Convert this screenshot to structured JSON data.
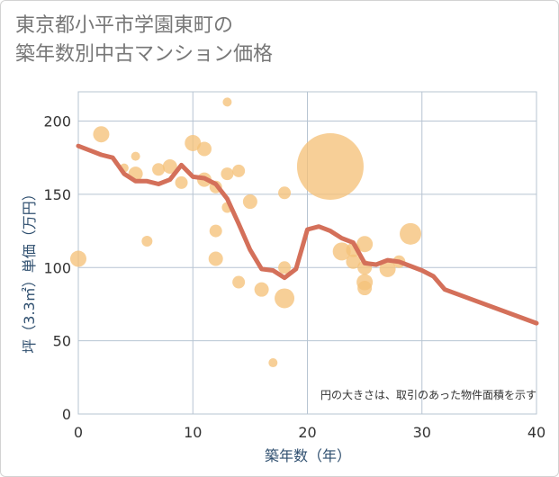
{
  "title": "東京都小平市学園東町の\n築年数別中古マンション価格",
  "note": "円の大きさは、取引のあった物件面積を示す",
  "colors": {
    "line": "#d4705a",
    "bubble": "#f5c27a",
    "grid": "#b7c4d2",
    "axis_text": "#2f4f6f"
  },
  "chart_data": {
    "type": "scatter",
    "xlabel": "築年数（年）",
    "ylabel": "坪（3.3㎡）単価（万円）",
    "xlim": [
      0,
      40
    ],
    "ylim": [
      0,
      220
    ],
    "xticks": [
      0,
      10,
      20,
      30,
      40
    ],
    "yticks": [
      0,
      50,
      100,
      150,
      200
    ],
    "grid": true,
    "scatter": [
      {
        "x": 0,
        "y": 106,
        "size": 9
      },
      {
        "x": 2,
        "y": 191,
        "size": 9
      },
      {
        "x": 4,
        "y": 168,
        "size": 5
      },
      {
        "x": 5,
        "y": 176,
        "size": 5
      },
      {
        "x": 5,
        "y": 164,
        "size": 8
      },
      {
        "x": 6,
        "y": 118,
        "size": 6
      },
      {
        "x": 7,
        "y": 167,
        "size": 7
      },
      {
        "x": 8,
        "y": 169,
        "size": 8
      },
      {
        "x": 9,
        "y": 158,
        "size": 7
      },
      {
        "x": 10,
        "y": 185,
        "size": 9
      },
      {
        "x": 11,
        "y": 181,
        "size": 8
      },
      {
        "x": 11,
        "y": 160,
        "size": 8
      },
      {
        "x": 12,
        "y": 155,
        "size": 7
      },
      {
        "x": 12,
        "y": 125,
        "size": 7
      },
      {
        "x": 12,
        "y": 106,
        "size": 8
      },
      {
        "x": 13,
        "y": 213,
        "size": 5
      },
      {
        "x": 13,
        "y": 164,
        "size": 7
      },
      {
        "x": 13,
        "y": 141,
        "size": 6
      },
      {
        "x": 14,
        "y": 166,
        "size": 7
      },
      {
        "x": 14,
        "y": 90,
        "size": 7
      },
      {
        "x": 15,
        "y": 145,
        "size": 8
      },
      {
        "x": 16,
        "y": 85,
        "size": 8
      },
      {
        "x": 17,
        "y": 35,
        "size": 5
      },
      {
        "x": 18,
        "y": 151,
        "size": 7
      },
      {
        "x": 18,
        "y": 100,
        "size": 7
      },
      {
        "x": 18,
        "y": 79,
        "size": 11
      },
      {
        "x": 22,
        "y": 169,
        "size": 37
      },
      {
        "x": 23,
        "y": 111,
        "size": 10
      },
      {
        "x": 24,
        "y": 112,
        "size": 8
      },
      {
        "x": 24,
        "y": 104,
        "size": 8
      },
      {
        "x": 25,
        "y": 116,
        "size": 9
      },
      {
        "x": 25,
        "y": 100,
        "size": 8
      },
      {
        "x": 25,
        "y": 90,
        "size": 9
      },
      {
        "x": 25,
        "y": 86,
        "size": 8
      },
      {
        "x": 27,
        "y": 99,
        "size": 9
      },
      {
        "x": 28,
        "y": 104,
        "size": 7
      },
      {
        "x": 29,
        "y": 123,
        "size": 12
      }
    ],
    "line": [
      {
        "x": 0,
        "y": 183
      },
      {
        "x": 1,
        "y": 180
      },
      {
        "x": 2,
        "y": 177
      },
      {
        "x": 3,
        "y": 175
      },
      {
        "x": 4,
        "y": 164
      },
      {
        "x": 5,
        "y": 159
      },
      {
        "x": 6,
        "y": 159
      },
      {
        "x": 7,
        "y": 157
      },
      {
        "x": 8,
        "y": 160
      },
      {
        "x": 9,
        "y": 170
      },
      {
        "x": 10,
        "y": 162
      },
      {
        "x": 11,
        "y": 161
      },
      {
        "x": 12,
        "y": 157
      },
      {
        "x": 13,
        "y": 147
      },
      {
        "x": 14,
        "y": 130
      },
      {
        "x": 15,
        "y": 112
      },
      {
        "x": 16,
        "y": 99
      },
      {
        "x": 17,
        "y": 98
      },
      {
        "x": 18,
        "y": 93
      },
      {
        "x": 19,
        "y": 99
      },
      {
        "x": 20,
        "y": 126
      },
      {
        "x": 21,
        "y": 128
      },
      {
        "x": 22,
        "y": 125
      },
      {
        "x": 23,
        "y": 120
      },
      {
        "x": 24,
        "y": 117
      },
      {
        "x": 25,
        "y": 103
      },
      {
        "x": 26,
        "y": 102
      },
      {
        "x": 27,
        "y": 105
      },
      {
        "x": 28,
        "y": 104
      },
      {
        "x": 29,
        "y": 101
      },
      {
        "x": 30,
        "y": 98
      },
      {
        "x": 31,
        "y": 94
      },
      {
        "x": 32,
        "y": 85
      },
      {
        "x": 40,
        "y": 62
      }
    ]
  }
}
